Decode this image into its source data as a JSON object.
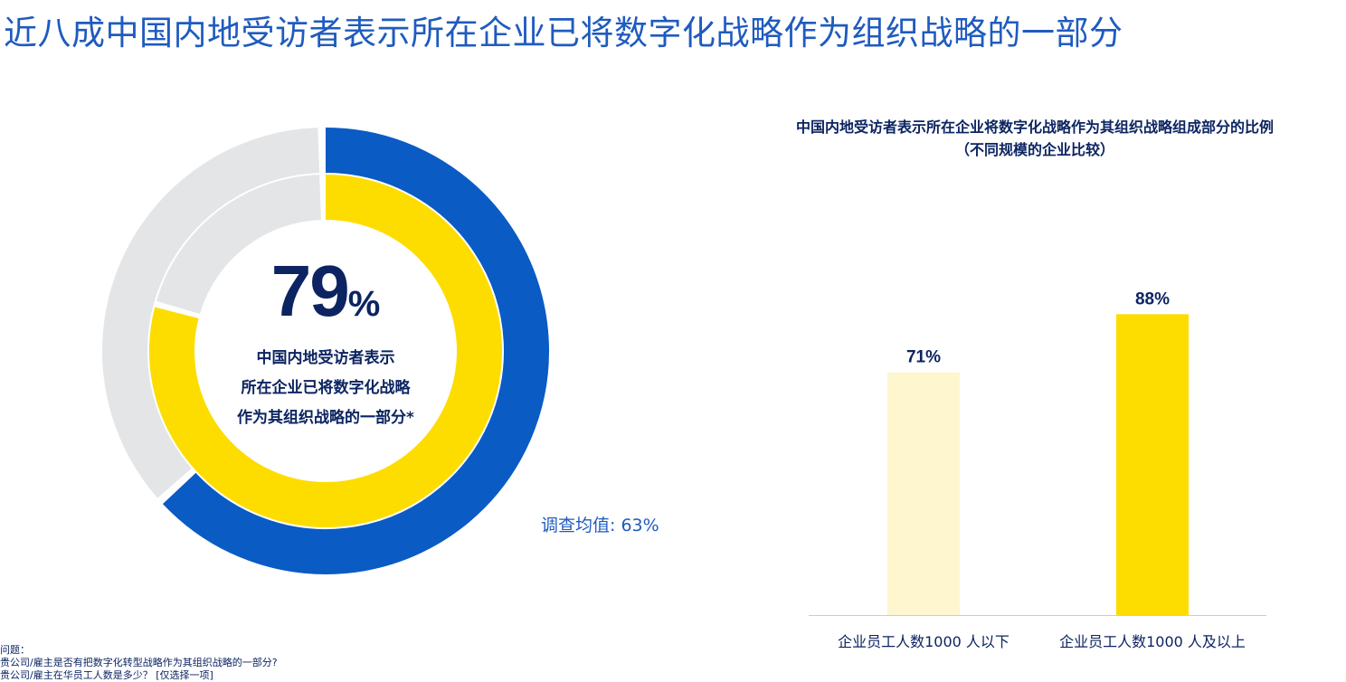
{
  "page": {
    "title": "近八成中国内地受访者表示所在企业已将数字化战略作为组织战略的一部分"
  },
  "donut": {
    "percent_number": "79",
    "percent_sign": "%",
    "description_lines": [
      "中国内地受访者表示",
      "所在企业已将数字化战略",
      "作为其组织战略的一部分*"
    ],
    "survey_average_label": "调查均值: 63%"
  },
  "footnote": {
    "lines": [
      "问题：",
      "贵公司/雇主是否有把数字化转型战略作为其组织战略的一部分?",
      "贵公司/雇主在华员工人数是多少？ [仅选择一项]"
    ]
  },
  "colors": {
    "title_blue": "#1f5bbf",
    "navy": "#0c2461",
    "outer_ring": "#0a5bc4",
    "inner_ring": "#fddd00",
    "ring_track": "#e4e5e7",
    "bar_light": "#fdf6cf",
    "bar_main": "#fddd00",
    "axis": "#c8cdd4"
  },
  "chart_data": [
    {
      "type": "pie",
      "variant": "nested-donut",
      "series": [
        {
          "name": "调查均值",
          "value": 63,
          "role": "outer-ring"
        },
        {
          "name": "中国内地",
          "value": 79,
          "role": "inner-ring"
        }
      ],
      "max": 100
    },
    {
      "type": "bar",
      "title": "中国内地受访者表示所在企业将数字化战略作为其组织战略组成部分的比例",
      "subtitle": "（不同规模的企业比较）",
      "categories": [
        "企业员工人数1000 人以下",
        "企业员工人数1000 人及以上"
      ],
      "values": [
        71,
        88
      ],
      "data_labels": [
        "71%",
        "88%"
      ],
      "ylim": [
        0,
        100
      ],
      "grid": false
    }
  ]
}
